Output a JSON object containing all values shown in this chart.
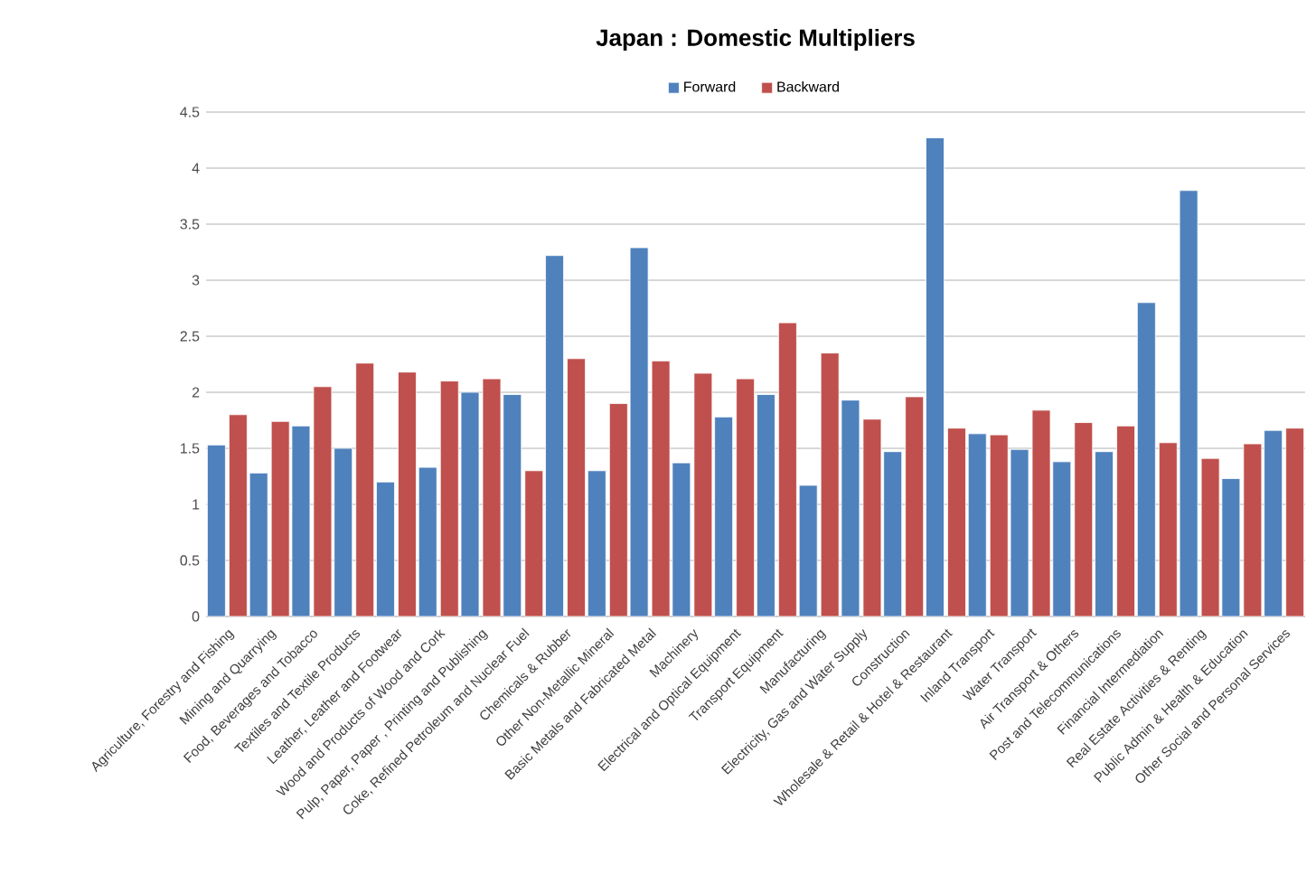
{
  "chart_data": {
    "type": "bar",
    "title": "Japan :  Domestic Multipliers",
    "categories": [
      "Agriculture, Forestry and Fishing",
      "Mining and Quarrying",
      "Food, Beverages and Tobacco",
      "Textiles and Textile Products",
      "Leather, Leather and Footwear",
      "Wood and Products of Wood and Cork",
      "Pulp, Paper, Paper , Printing and Publishing",
      "Coke, Refined Petroleum and Nuclear Fuel",
      "Chemicals & Rubber",
      "Other Non-Metallic Mineral",
      "Basic Metals and Fabricated Metal",
      "Machinery",
      "Electrical and Optical Equipment",
      "Transport Equipment",
      "Manufacturing",
      "Electricity, Gas and Water Supply",
      "Construction",
      "Wholesale & Retail & Hotel & Restaurant",
      "Inland Transport",
      "Water Transport",
      "Air Transport & Others",
      "Post and Telecommunications",
      "Financial Intermediation",
      "Real Estate Activities & Renting",
      "Public Admin & Health & Education",
      "Other Social and Personal Services"
    ],
    "series": [
      {
        "name": "Forward",
        "color": "#4f81bd",
        "values": [
          1.53,
          1.28,
          1.7,
          1.5,
          1.2,
          1.33,
          2.0,
          1.98,
          3.22,
          1.3,
          3.29,
          1.37,
          1.78,
          1.98,
          1.17,
          1.93,
          1.47,
          4.27,
          1.63,
          1.49,
          1.38,
          1.47,
          2.8,
          3.8,
          1.23,
          1.66
        ]
      },
      {
        "name": "Backward",
        "color": "#c0504d",
        "values": [
          1.8,
          1.74,
          2.05,
          2.26,
          2.18,
          2.1,
          2.12,
          1.3,
          2.3,
          1.9,
          2.28,
          2.17,
          2.12,
          2.62,
          2.35,
          1.76,
          1.96,
          1.68,
          1.62,
          1.84,
          1.73,
          1.7,
          1.55,
          1.41,
          1.54,
          1.68
        ]
      }
    ],
    "ylim": [
      0,
      4.5
    ],
    "yticks": [
      0,
      0.5,
      1,
      1.5,
      2,
      2.5,
      3,
      3.5,
      4,
      4.5
    ],
    "grid": "y",
    "legend": "top"
  }
}
